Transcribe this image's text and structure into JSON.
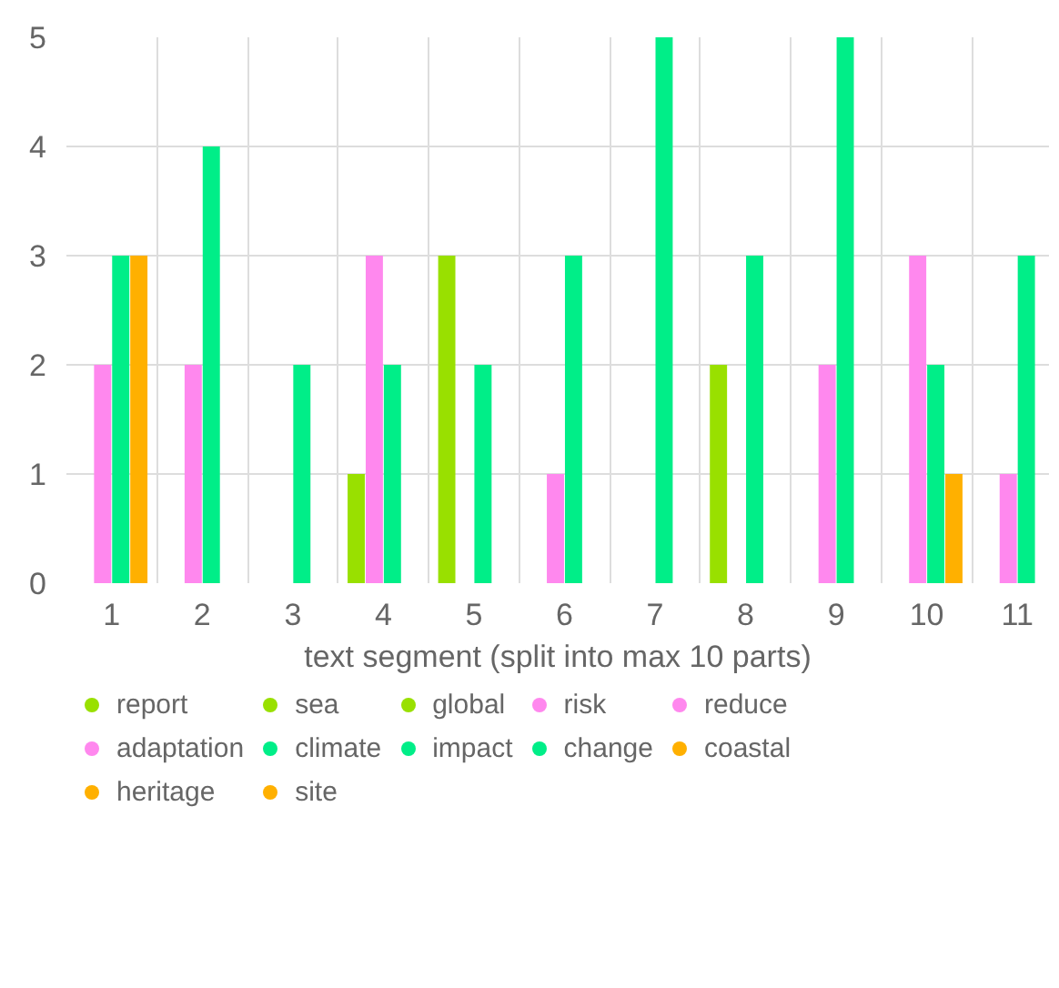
{
  "chart_data": {
    "type": "bar",
    "xlabel": "text segment (split into max 10 parts)",
    "categories": [
      "1",
      "2",
      "3",
      "4",
      "5",
      "6",
      "7",
      "8",
      "9",
      "10",
      "11"
    ],
    "series": [
      {
        "name": "report",
        "color": "#99e000",
        "values": [
          0,
          0,
          0,
          1,
          3,
          0,
          0,
          2,
          0,
          0,
          0
        ]
      },
      {
        "name": "sea",
        "color": "#99e000",
        "values": [
          null,
          null,
          null,
          null,
          null,
          null,
          null,
          null,
          null,
          null,
          null
        ]
      },
      {
        "name": "global",
        "color": "#99e000",
        "values": [
          null,
          null,
          null,
          null,
          null,
          null,
          null,
          null,
          null,
          null,
          null
        ]
      },
      {
        "name": "risk",
        "color": "#ff88ee",
        "values": [
          2,
          2,
          0,
          3,
          0,
          1,
          0,
          0,
          2,
          3,
          1
        ]
      },
      {
        "name": "reduce",
        "color": "#ff88ee",
        "values": [
          null,
          null,
          null,
          null,
          null,
          null,
          null,
          null,
          null,
          null,
          null
        ]
      },
      {
        "name": "adaptation",
        "color": "#ff88ee",
        "values": [
          null,
          null,
          null,
          null,
          null,
          null,
          null,
          null,
          null,
          null,
          null
        ]
      },
      {
        "name": "climate",
        "color": "#00ee88",
        "values": [
          3,
          4,
          2,
          2,
          2,
          3,
          5,
          3,
          5,
          2,
          3
        ]
      },
      {
        "name": "impact",
        "color": "#00ee88",
        "values": [
          null,
          null,
          null,
          null,
          null,
          null,
          null,
          null,
          null,
          null,
          null
        ]
      },
      {
        "name": "change",
        "color": "#00ee88",
        "values": [
          null,
          null,
          null,
          null,
          null,
          null,
          null,
          null,
          null,
          null,
          null
        ]
      },
      {
        "name": "coastal",
        "color": "#ffb000",
        "values": [
          3,
          0,
          0,
          0,
          0,
          0,
          0,
          0,
          0,
          1,
          0
        ]
      },
      {
        "name": "heritage",
        "color": "#ffb000",
        "values": [
          null,
          null,
          null,
          null,
          null,
          null,
          null,
          null,
          null,
          null,
          null
        ]
      },
      {
        "name": "site",
        "color": "#ffb000",
        "values": [
          null,
          null,
          null,
          null,
          null,
          null,
          null,
          null,
          null,
          null,
          null
        ]
      }
    ],
    "ylim": [
      0,
      5
    ],
    "yticks": [
      0,
      1,
      2,
      3,
      4,
      5
    ],
    "grid": true,
    "legend": "bottom"
  }
}
